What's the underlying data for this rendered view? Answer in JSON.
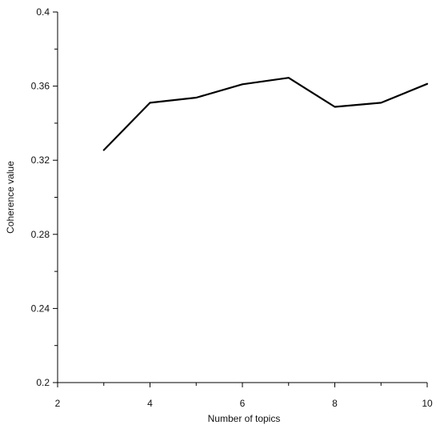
{
  "chart_data": {
    "type": "line",
    "title": "",
    "xlabel": "Number of topics",
    "ylabel": "Coherence value",
    "xlim": [
      2,
      10
    ],
    "ylim": [
      0.2,
      0.4
    ],
    "x_ticks": [
      2,
      4,
      6,
      8,
      10
    ],
    "x_tick_labels": [
      "2",
      "4",
      "6",
      "8",
      "10"
    ],
    "x_minor_ticks": [
      3,
      5,
      7,
      9
    ],
    "y_ticks": [
      0.2,
      0.24,
      0.28,
      0.32,
      0.36,
      0.4
    ],
    "y_tick_labels": [
      "0.2",
      "0.24",
      "0.28",
      "0.32",
      "0.36",
      "0.4"
    ],
    "y_minor_ticks": [
      0.22,
      0.26,
      0.3,
      0.34,
      0.38
    ],
    "grid": false,
    "series": [
      {
        "color": "#000000",
        "x": [
          3,
          4,
          5,
          6,
          7,
          8,
          9,
          10
        ],
        "values": [
          0.3255,
          0.351,
          0.3538,
          0.361,
          0.3645,
          0.3488,
          0.351,
          0.3612
        ]
      }
    ]
  }
}
